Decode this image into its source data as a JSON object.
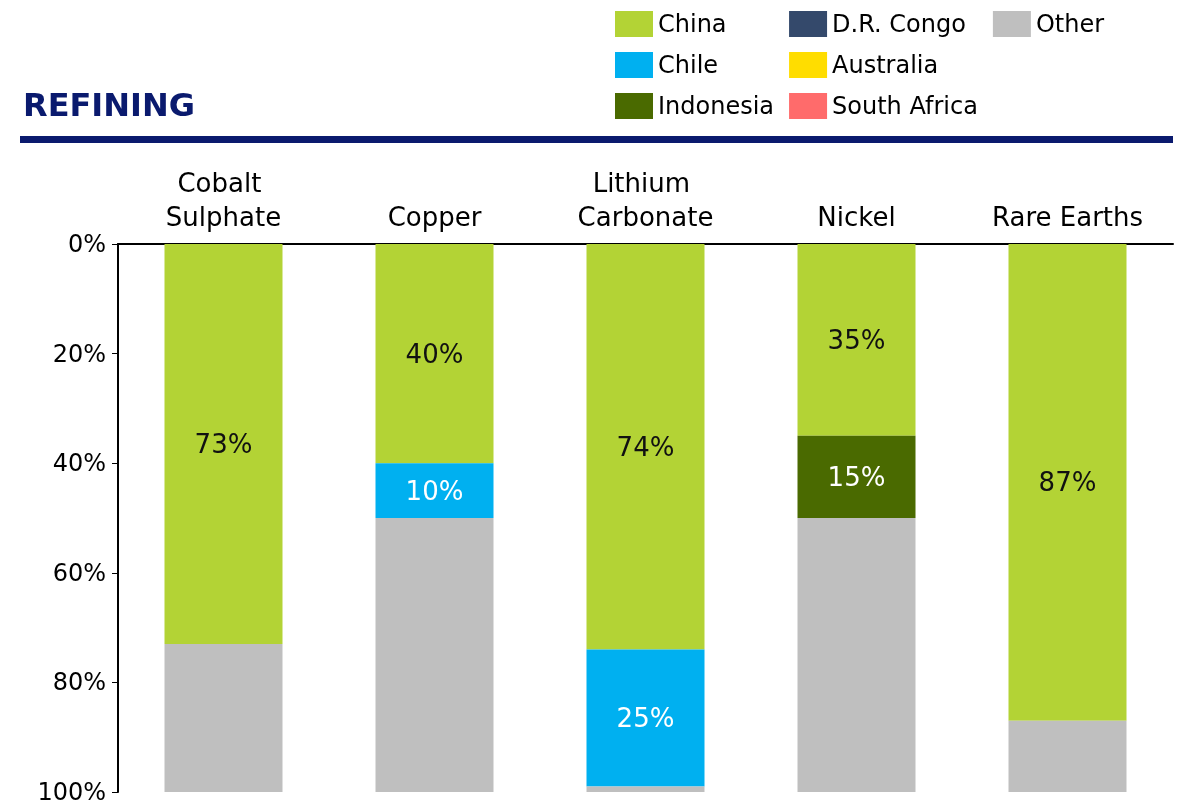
{
  "chart_data": {
    "type": "bar",
    "title": "REFINING",
    "categories": [
      "Cobalt Sulphate",
      "Copper",
      "Lithium Carbonate",
      "Nickel",
      "Rare Earths"
    ],
    "stacked": true,
    "series": [
      {
        "name": "China",
        "color": "#b3d335",
        "values": [
          73,
          40,
          74,
          35,
          87
        ],
        "value_labels": [
          "73%",
          "40%",
          "74%",
          "35%",
          "87%"
        ]
      },
      {
        "name": "Chile",
        "color": "#00b0f0",
        "values": [
          null,
          10,
          25,
          null,
          null
        ],
        "value_labels": [
          null,
          "10%",
          "25%",
          null,
          null
        ]
      },
      {
        "name": "Indonesia",
        "color": "#4a6a00",
        "values": [
          null,
          null,
          null,
          15,
          null
        ],
        "value_labels": [
          null,
          null,
          null,
          "15%",
          null
        ]
      },
      {
        "name": "D.R. Congo",
        "color": "#34496b",
        "values": [
          null,
          null,
          null,
          null,
          null
        ]
      },
      {
        "name": "Australia",
        "color": "#ffdd00",
        "values": [
          null,
          null,
          null,
          null,
          null
        ]
      },
      {
        "name": "South Africa",
        "color": "#ff6b6b",
        "values": [
          null,
          null,
          null,
          null,
          null
        ]
      },
      {
        "name": "Other",
        "color": "#bfbfbf",
        "values": [
          27,
          50,
          1,
          50,
          13
        ]
      }
    ],
    "ylim": [
      100,
      0
    ],
    "yticks": [
      {
        "value": 0,
        "label": "0%"
      },
      {
        "value": 20,
        "label": "20%"
      },
      {
        "value": 40,
        "label": "40%"
      },
      {
        "value": 60,
        "label": "60%"
      },
      {
        "value": 80,
        "label": "80%"
      },
      {
        "value": 100,
        "label": "100%"
      }
    ],
    "grid": false,
    "legend": "top right"
  }
}
